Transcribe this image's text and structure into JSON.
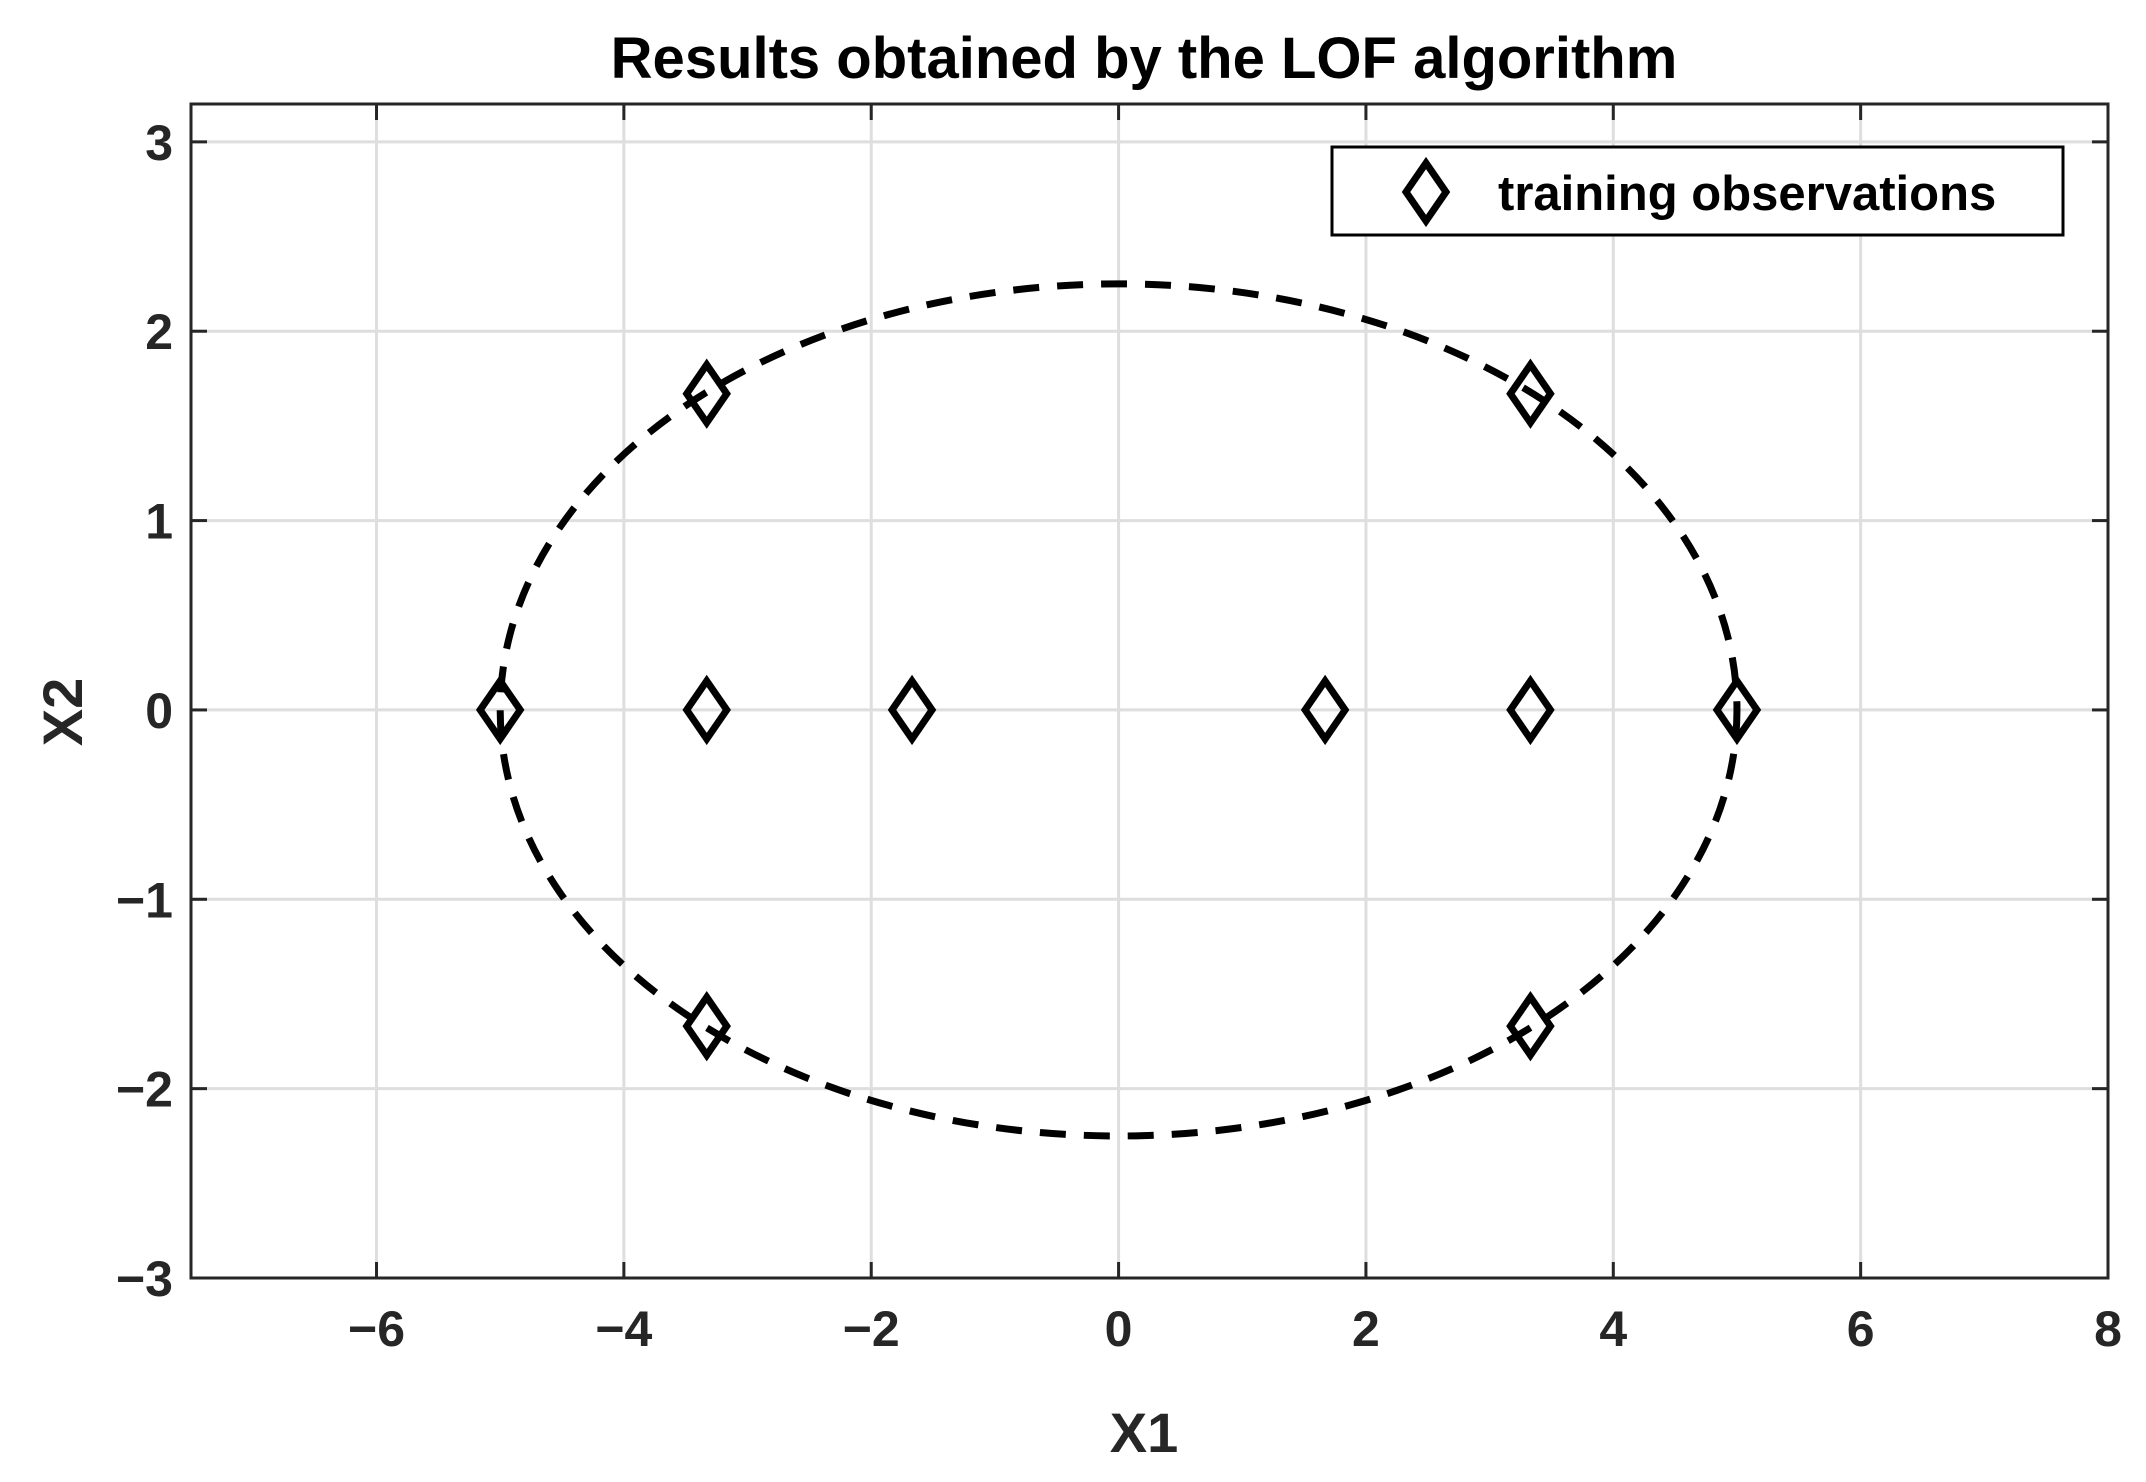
{
  "chart_data": {
    "type": "scatter",
    "title": "Results obtained by the LOF algorithm",
    "xlabel": "X1",
    "ylabel": "X2",
    "xlim": [
      -7.5,
      8
    ],
    "ylim": [
      -3,
      3.2
    ],
    "xticks": [
      -6,
      -4,
      -2,
      0,
      2,
      4,
      6,
      8
    ],
    "yticks": [
      -3,
      -2,
      -1,
      0,
      1,
      2,
      3
    ],
    "xtick_labels": [
      "−6",
      "−4",
      "−2",
      "0",
      "2",
      "4",
      "6",
      "8"
    ],
    "ytick_labels": [
      "−3",
      "−2",
      "−1",
      "0",
      "1",
      "2",
      "3"
    ],
    "grid": true,
    "legend_position": "top-right",
    "series": [
      {
        "name": "training observations",
        "marker": "diamond",
        "color": "#000000",
        "x": [
          -5,
          -3.33,
          -1.67,
          1.67,
          3.33,
          5,
          -3.33,
          3.33,
          -3.33,
          3.33
        ],
        "y": [
          0,
          0,
          0,
          0,
          0,
          0,
          1.67,
          1.67,
          -1.67,
          -1.67
        ]
      }
    ],
    "boundary": {
      "style": "dashed",
      "color": "#000000",
      "center": [
        0,
        0
      ],
      "semi_axis_x": 5,
      "semi_axis_y": 2.25
    }
  }
}
